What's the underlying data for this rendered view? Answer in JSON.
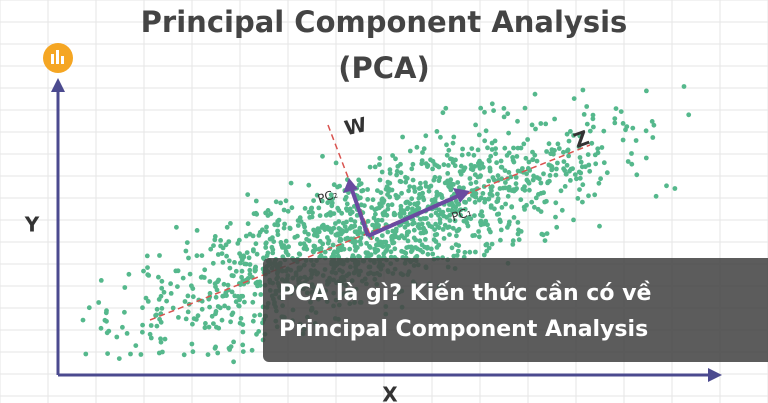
{
  "header": {
    "title": "Principal Component Analysis",
    "subtitle": "(PCA)"
  },
  "diagram": {
    "axis_y": "Y",
    "axis_x": "X",
    "line_w": "W",
    "line_z": "Z",
    "vector_pc1": "PC₁",
    "vector_pc2": "PC₂"
  },
  "caption": {
    "line1": "PCA là gì? Kiến thức cần có về",
    "line2": "Principal Component Analysis"
  }
}
